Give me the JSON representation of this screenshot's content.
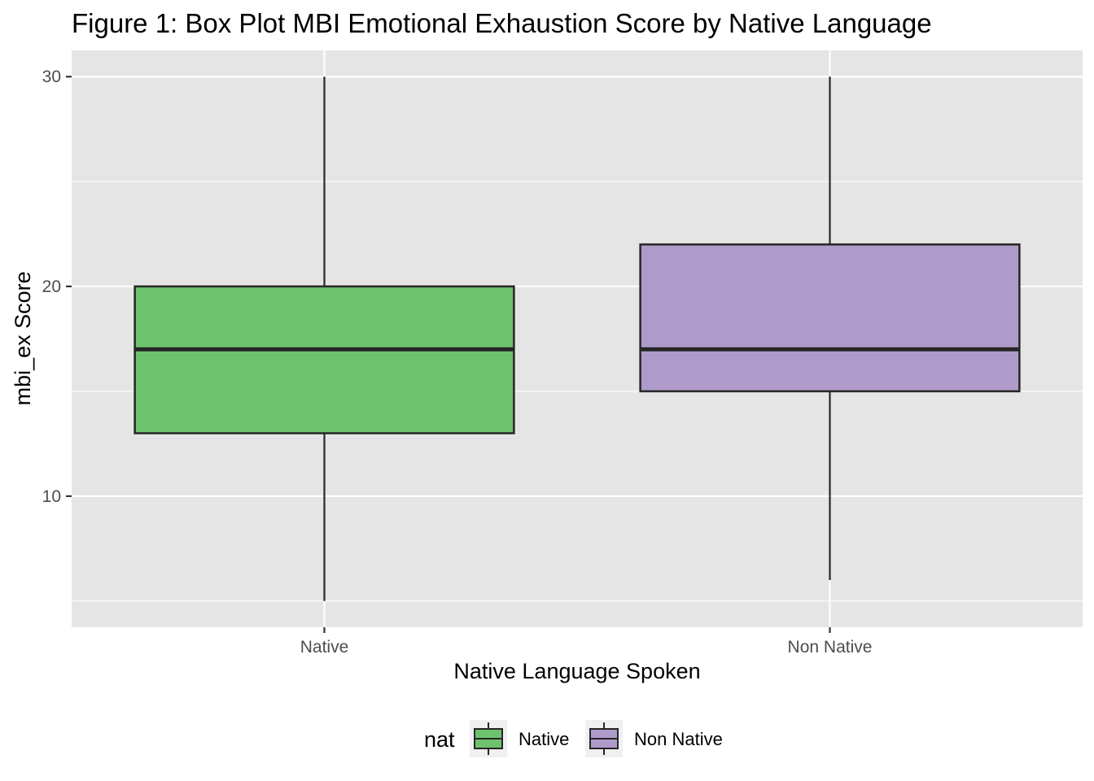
{
  "chart_data": {
    "type": "boxplot",
    "title": "Figure 1: Box Plot MBI Emotional Exhaustion Score by Native Language",
    "xlabel": "Native Language Spoken",
    "ylabel": "mbi_ex Score",
    "ylim": [
      3.75,
      31.25
    ],
    "y_ticks": [
      10,
      20,
      30
    ],
    "grid": true,
    "categories": [
      "Native",
      "Non Native"
    ],
    "series": [
      {
        "category": "Native",
        "min": 5,
        "q1": 13,
        "median": 17,
        "q3": 20,
        "max": 30
      },
      {
        "category": "Non Native",
        "min": 6,
        "q1": 15,
        "median": 17,
        "q3": 22,
        "max": 30
      }
    ],
    "legend": {
      "title": "nat",
      "position": "bottom",
      "entries": [
        "Native",
        "Non Native"
      ]
    },
    "colors": {
      "Native": "#6fc26d",
      "Non Native": "#af9bca",
      "panel_background": "#e5e5e5",
      "grid_line": "#ffffff",
      "box_outline": "#262626"
    }
  }
}
